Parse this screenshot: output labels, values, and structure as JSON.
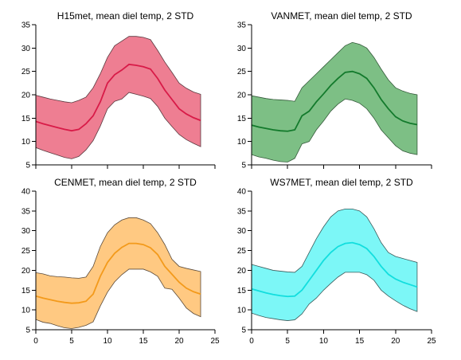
{
  "chart_data": [
    {
      "type": "area",
      "title": "H15met, mean diel temp, 2 STD",
      "xlim": [
        0,
        25
      ],
      "ylim": [
        5,
        35
      ],
      "yticks": [
        5,
        10,
        15,
        20,
        25,
        30,
        35
      ],
      "xticks": [
        0,
        5,
        10,
        15,
        20,
        25
      ],
      "show_xtick_labels": false,
      "fill_color": "#ee7e92",
      "line_color": "#d81b48",
      "edge_color": "#5a3a40",
      "x": [
        0,
        1,
        2,
        3,
        4,
        5,
        6,
        7,
        8,
        9,
        10,
        11,
        12,
        13,
        14,
        15,
        16,
        17,
        18,
        19,
        20,
        21,
        22,
        23
      ],
      "mean": [
        14.3,
        13.8,
        13.4,
        13.0,
        12.6,
        12.3,
        12.6,
        13.8,
        15.5,
        18.5,
        22.5,
        24.3,
        25.3,
        26.5,
        26.3,
        26.0,
        25.5,
        23.5,
        21.0,
        19.0,
        17.0,
        15.9,
        15.1,
        14.5
      ],
      "upper": [
        19.9,
        19.5,
        19.1,
        18.8,
        18.5,
        18.3,
        18.8,
        19.5,
        21.5,
        24.5,
        28.0,
        30.5,
        31.5,
        32.5,
        32.5,
        32.3,
        31.8,
        29.5,
        27.0,
        24.8,
        22.5,
        21.4,
        20.6,
        20.1
      ],
      "lower": [
        8.7,
        8.1,
        7.6,
        7.1,
        6.6,
        6.3,
        6.8,
        8.2,
        10.2,
        13.3,
        17.0,
        18.6,
        19.1,
        20.5,
        20.1,
        19.7,
        19.2,
        17.5,
        15.0,
        13.2,
        11.5,
        10.4,
        9.6,
        8.9
      ]
    },
    {
      "type": "area",
      "title": "VANMET, mean diel temp, 2 STD",
      "xlim": [
        0,
        25
      ],
      "ylim": [
        5,
        35
      ],
      "yticks": [
        5,
        10,
        15,
        20,
        25,
        30,
        35
      ],
      "xticks": [
        0,
        5,
        10,
        15,
        20,
        25
      ],
      "show_xtick_labels": false,
      "fill_color": "#7dbf85",
      "line_color": "#137a2c",
      "edge_color": "#345a3a",
      "x": [
        0,
        1,
        2,
        3,
        4,
        5,
        6,
        7,
        8,
        9,
        10,
        11,
        12,
        13,
        14,
        15,
        16,
        17,
        18,
        19,
        20,
        21,
        22,
        23
      ],
      "mean": [
        13.5,
        13.1,
        12.8,
        12.5,
        12.3,
        12.2,
        12.5,
        15.5,
        16.5,
        18.5,
        20.2,
        22.0,
        23.5,
        24.8,
        25.0,
        24.5,
        23.5,
        21.5,
        19.0,
        17.0,
        15.3,
        14.4,
        13.9,
        13.6
      ],
      "upper": [
        19.8,
        19.5,
        19.2,
        19.0,
        18.9,
        18.8,
        18.6,
        21.5,
        23.0,
        24.5,
        26.0,
        27.5,
        29.0,
        30.5,
        31.2,
        30.8,
        30.0,
        28.0,
        25.5,
        23.2,
        21.5,
        20.8,
        20.3,
        20.0
      ],
      "lower": [
        7.2,
        6.7,
        6.4,
        6.0,
        5.7,
        5.6,
        6.4,
        9.5,
        10.0,
        12.5,
        14.4,
        16.5,
        18.0,
        19.1,
        18.8,
        18.2,
        17.0,
        15.0,
        12.5,
        10.8,
        9.1,
        8.0,
        7.5,
        7.2
      ]
    },
    {
      "type": "area",
      "title": "CENMET, mean diel temp, 2 STD",
      "xlim": [
        0,
        25
      ],
      "ylim": [
        5,
        40
      ],
      "yticks": [
        5,
        10,
        15,
        20,
        25,
        30,
        35,
        40
      ],
      "xticks": [
        0,
        5,
        10,
        15,
        20,
        25
      ],
      "show_xtick_labels": true,
      "fill_color": "#ffc982",
      "line_color": "#f39a1b",
      "edge_color": "#5a4a3a",
      "x": [
        0,
        1,
        2,
        3,
        4,
        5,
        6,
        7,
        8,
        9,
        10,
        11,
        12,
        13,
        14,
        15,
        16,
        17,
        18,
        19,
        20,
        21,
        22,
        23
      ],
      "mean": [
        13.5,
        13.0,
        12.6,
        12.2,
        11.9,
        11.7,
        11.8,
        12.2,
        14.0,
        18.5,
        22.0,
        24.3,
        25.8,
        26.8,
        26.8,
        26.5,
        25.7,
        24.0,
        21.0,
        19.0,
        17.0,
        15.5,
        14.6,
        14.0
      ],
      "upper": [
        19.4,
        19.1,
        18.6,
        18.4,
        18.3,
        18.1,
        18.0,
        18.3,
        21.0,
        26.0,
        29.5,
        31.5,
        32.7,
        33.3,
        33.3,
        32.7,
        31.8,
        29.5,
        26.5,
        22.8,
        21.0,
        20.5,
        20.1,
        19.7
      ],
      "lower": [
        7.6,
        6.9,
        6.6,
        6.0,
        5.5,
        5.3,
        5.6,
        6.1,
        7.0,
        11.0,
        14.5,
        17.1,
        18.9,
        20.3,
        20.3,
        20.3,
        19.6,
        18.5,
        15.5,
        15.2,
        13.0,
        10.5,
        9.1,
        8.3
      ]
    },
    {
      "type": "area",
      "title": "WS7MET, mean diel temp, 2 STD",
      "xlim": [
        0,
        25
      ],
      "ylim": [
        5,
        40
      ],
      "yticks": [
        5,
        10,
        15,
        20,
        25,
        30,
        35,
        40
      ],
      "xticks": [
        0,
        5,
        10,
        15,
        20,
        25
      ],
      "show_xtick_labels": true,
      "fill_color": "#7cf7f7",
      "line_color": "#12dede",
      "edge_color": "#3a5a5a",
      "x": [
        0,
        1,
        2,
        3,
        4,
        5,
        6,
        7,
        8,
        9,
        10,
        11,
        12,
        13,
        14,
        15,
        16,
        17,
        18,
        19,
        20,
        21,
        22,
        23
      ],
      "mean": [
        15.3,
        14.8,
        14.3,
        13.9,
        13.6,
        13.4,
        13.5,
        15.0,
        17.5,
        20.0,
        22.5,
        24.5,
        26.0,
        26.8,
        27.0,
        26.5,
        25.5,
        23.5,
        21.0,
        19.0,
        17.8,
        17.0,
        16.4,
        15.8
      ],
      "upper": [
        21.5,
        21.0,
        20.5,
        20.0,
        19.8,
        19.6,
        19.5,
        21.0,
        24.5,
        28.0,
        31.0,
        33.5,
        35.0,
        35.5,
        35.5,
        35.0,
        33.5,
        30.5,
        27.0,
        24.5,
        23.5,
        23.0,
        22.5,
        22.0
      ],
      "lower": [
        9.2,
        8.6,
        8.1,
        7.8,
        7.5,
        7.3,
        7.5,
        9.0,
        11.5,
        13.0,
        15.0,
        16.7,
        18.3,
        19.5,
        19.5,
        19.5,
        18.9,
        17.5,
        15.0,
        13.5,
        12.3,
        11.2,
        10.3,
        9.6
      ]
    }
  ]
}
